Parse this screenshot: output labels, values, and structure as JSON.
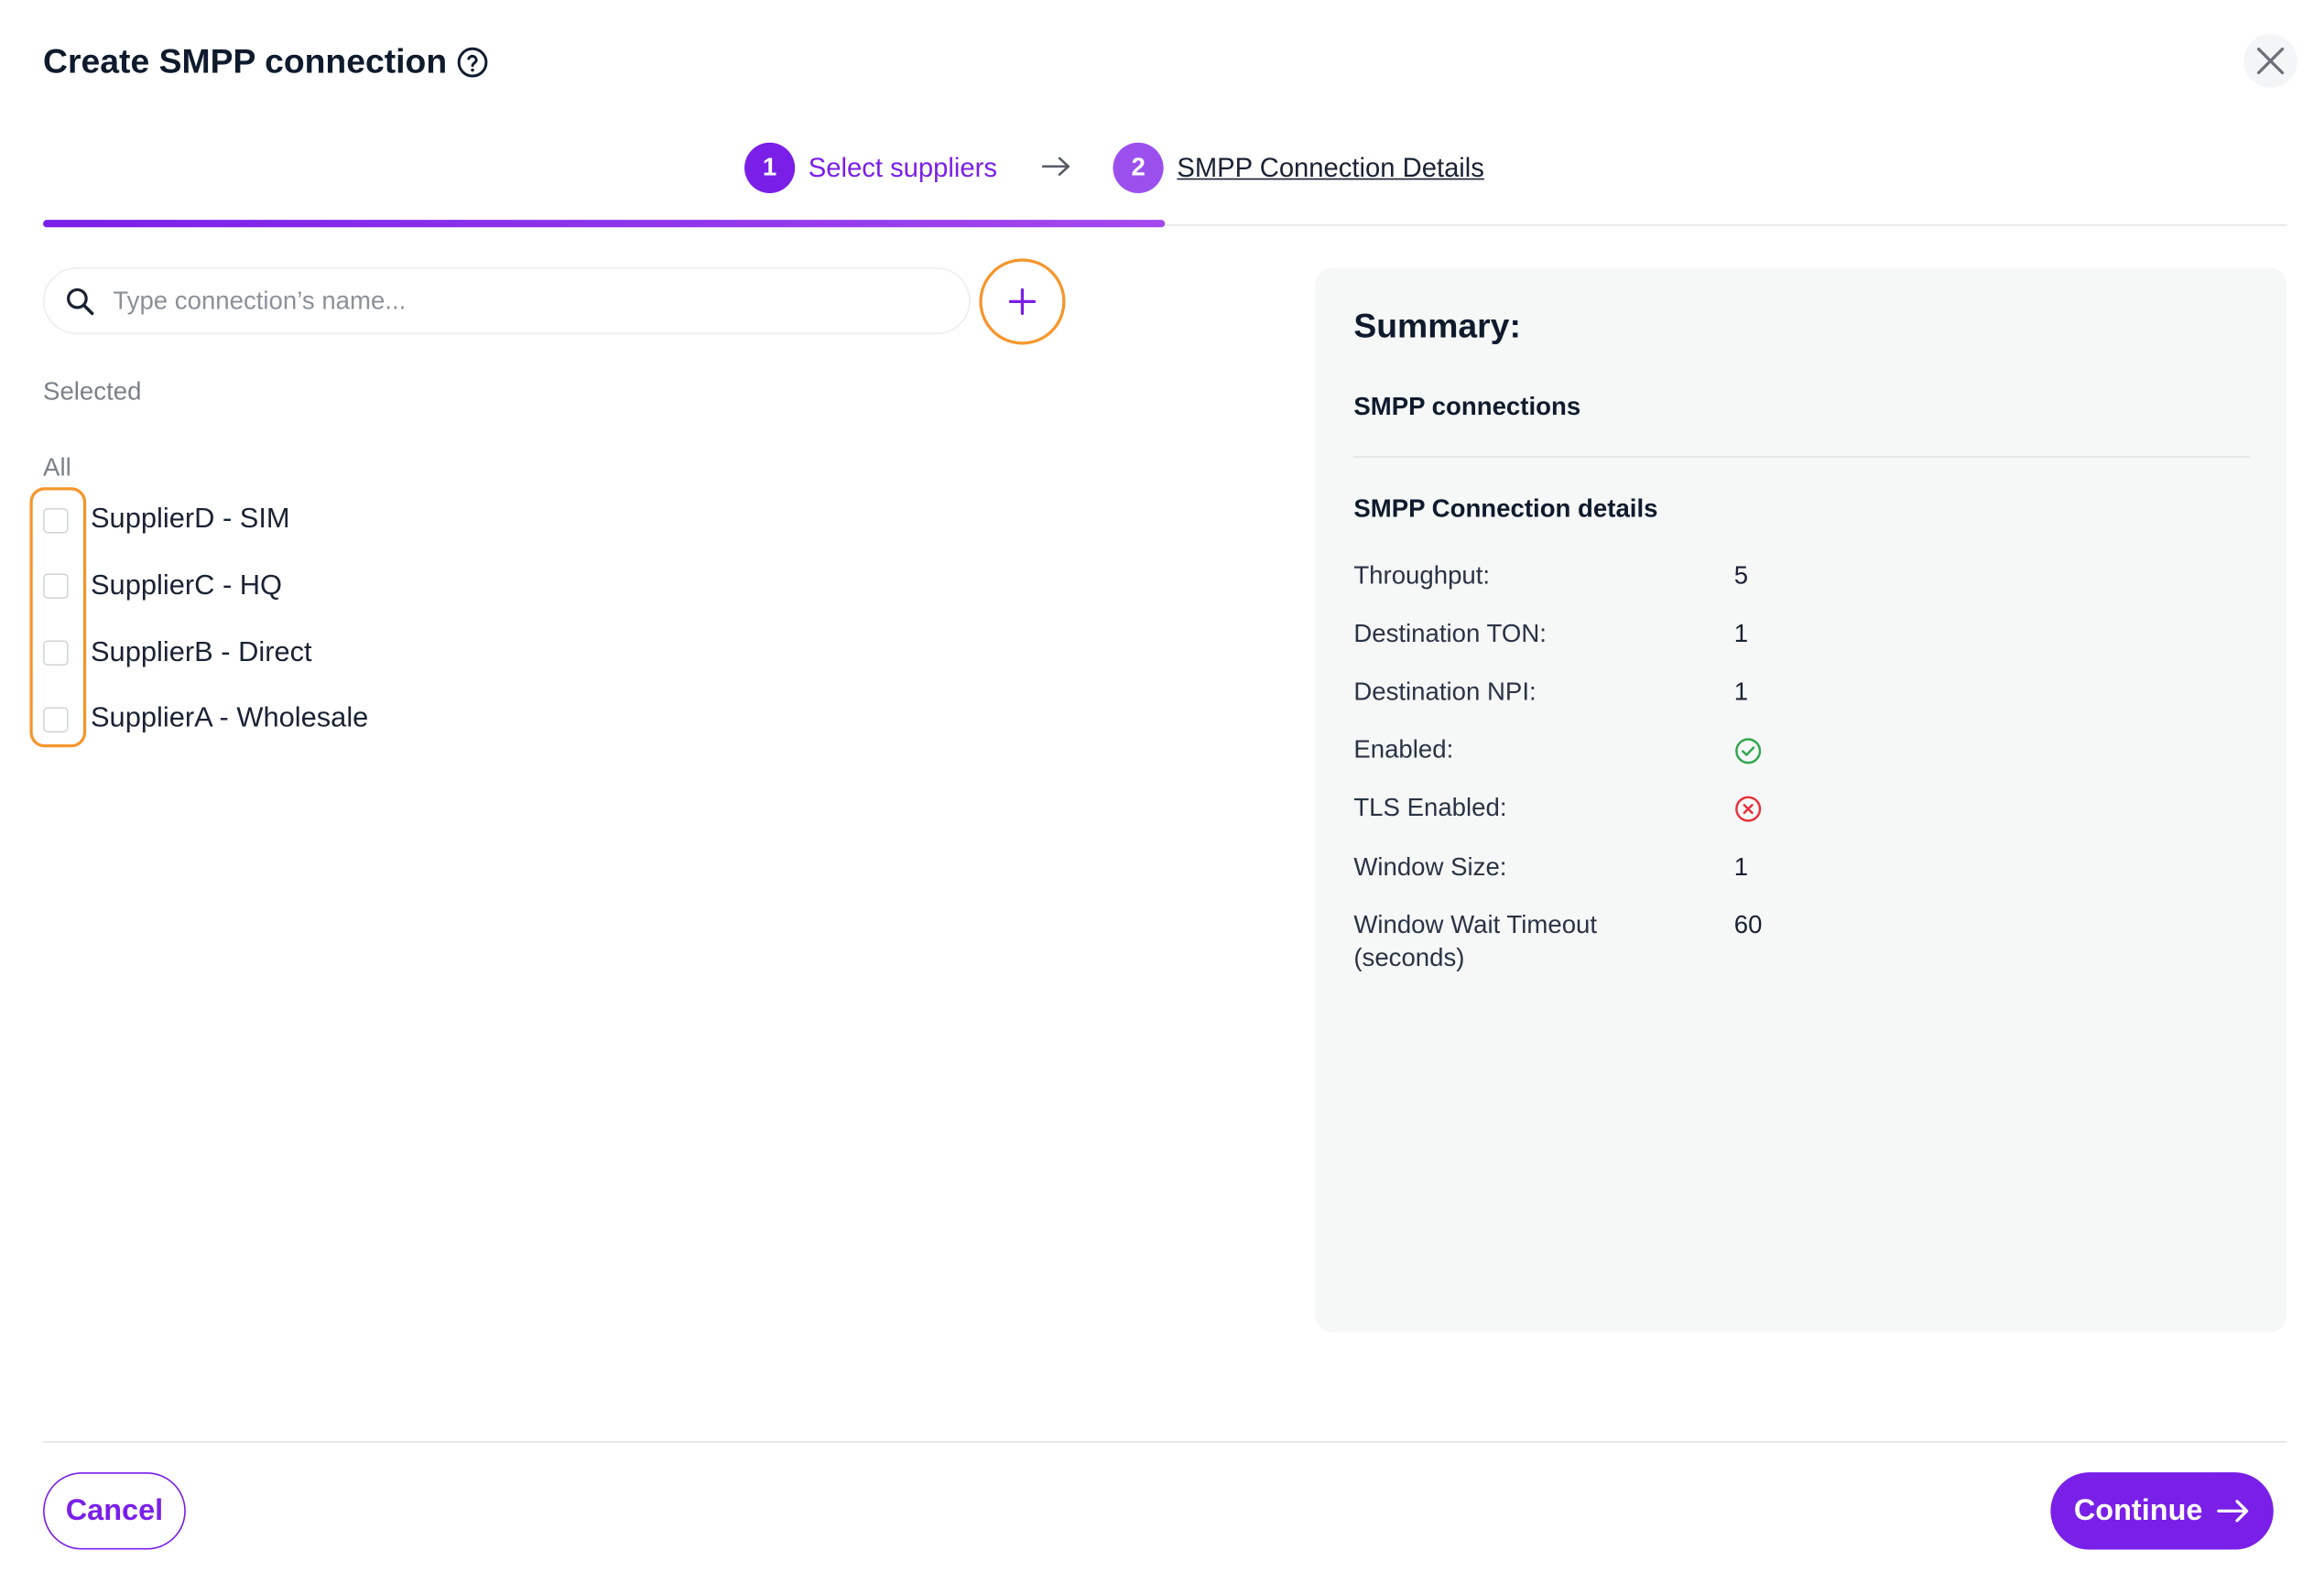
{
  "dialog": {
    "title": "Create SMPP connection"
  },
  "stepper": {
    "steps": [
      {
        "number": "1",
        "label": "Select suppliers",
        "state": "active"
      },
      {
        "number": "2",
        "label": "SMPP Connection Details",
        "state": "next"
      }
    ],
    "progress": 0.5
  },
  "search": {
    "placeholder": "Type connection’s name...",
    "value": ""
  },
  "selection": {
    "selected_label": "Selected",
    "all_label": "All",
    "suppliers": [
      {
        "name": "SupplierD - SIM",
        "checked": false
      },
      {
        "name": "SupplierC - HQ",
        "checked": false
      },
      {
        "name": "SupplierB - Direct",
        "checked": false
      },
      {
        "name": "SupplierA - Wholesale",
        "checked": false
      }
    ]
  },
  "summary": {
    "title": "Summary:",
    "connections_heading": "SMPP connections",
    "details_heading": "SMPP Connection details",
    "details": [
      {
        "label": "Throughput:",
        "value": "5"
      },
      {
        "label": "Destination TON:",
        "value": "1"
      },
      {
        "label": "Destination NPI:",
        "value": "1"
      },
      {
        "label": "Enabled:",
        "icon": "check-circle-icon"
      },
      {
        "label": "TLS Enabled:",
        "icon": "x-circle-icon"
      },
      {
        "label": "Window Size:",
        "value": "1"
      },
      {
        "label": "Window Wait Timeout (seconds)",
        "value": "60"
      }
    ]
  },
  "footer": {
    "cancel_label": "Cancel",
    "continue_label": "Continue"
  },
  "colors": {
    "accent": "#7a1fe8",
    "highlight": "#f5962b",
    "success": "#2fa84f",
    "error": "#e5323b"
  }
}
